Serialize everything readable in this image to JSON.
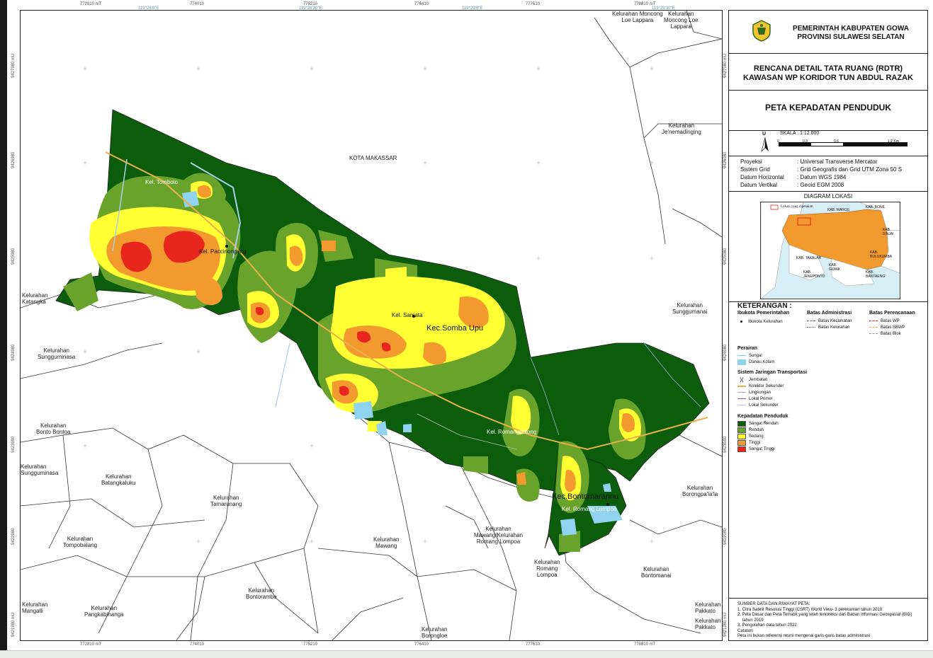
{
  "map": {
    "top_ticks": [
      "772810 mT",
      "774010",
      "775210",
      "776410",
      "777610",
      "778810 mT"
    ],
    "top_deg_ticks": [
      "119°28'0\"E",
      "119°28'30\"E",
      "119°29'0\"E",
      "119°29'30\"E"
    ],
    "bottom_ticks": [
      "772810 mT",
      "774010",
      "775210",
      "776410",
      "777610",
      "778810 mT"
    ],
    "left_ticks": [
      "9427980 mU",
      "9426980",
      "9425980",
      "9424980",
      "9423980",
      "9422980",
      "9421980 mU"
    ],
    "right_ticks": [
      "9427980 mU",
      "9426980",
      "9425980",
      "9424980",
      "9423980",
      "9422980",
      "9421980 mU"
    ],
    "labels": {
      "kota_makassar": "KOTA MAKASSAR",
      "moncong_loe_1": "Kelurahan Moncong\nLoe Lappara",
      "moncong_loe_2": "Kelurahan\nMoncong Loe\nLappara",
      "jenemadinging": "Kelurahan\nJe'nemadinging",
      "katangka": "Kelurahan\nKatangka",
      "sungguminasa_1": "Kelurahan\nSungguminasa",
      "bonto_bontoa": "Kelurahan\nBonto Bontoa",
      "sungguminasa_2": "Kelurahan\nSungguminasa",
      "batangkaluku": "Kelurahan\nBatangkaluku",
      "tamarunang": "Kelurahan\nTamarunang",
      "tompobalang": "Kelurahan\nTompobalang",
      "mawang": "Kelurahan\nMawang",
      "mawang_romang": "Kelurahan\nMawang/Kelurahan\nRomang Lompoa",
      "romang_lompoa": "Kelurahan\nRomang\nLompoa",
      "bontomanai": "Kelurahan\nBontomanai",
      "bontoramba": "Kelurahan\nBontoramba",
      "mangalli": "Kelurahan\nMangalli",
      "pangkabinanga": "Kelurahan\nPangkabinanga",
      "borongloe": "Kelurahan\nBorongloe",
      "pakkato": "Kelurahan\nPakkato",
      "pakkato_2": "Kelurahan\nPakkato",
      "sunggumanai": "Kelurahan\nSunggumanai",
      "borongpalala": "Kelurahan\nBorongpa'la'la",
      "kel_tombolo": "Kel. Tombolo",
      "kel_paccinongang": "Kel. Paccinongang",
      "kel_samata": "Kel. Samata",
      "kec_somba_upu": "Kec.Somba Upu",
      "kel_romang_polong": "Kel. Romangpolong",
      "kec_bontomarannu": "Kec.Bontomarannu",
      "kel_romang_lompoa": "Kel. Romang Lompoa"
    }
  },
  "panel": {
    "gov_line1": "PEMERINTAH KABUPATEN GOWA",
    "gov_line2": "PROVINSI SULAWESI SELATAN",
    "plan_line1": "RENCANA DETAIL TATA RUANG (RDTR)",
    "plan_line2": "KAWASAN WP KORIDOR TUN ABDUL RAZAK",
    "map_title": "PETA KEPADATAN PENDUDUK",
    "north": "U",
    "scale_label": "SKALA :  1:12.000",
    "scale_ticks": [
      "0",
      "0,3",
      "0,6",
      "1,2 Km"
    ],
    "projection": [
      {
        "k": "Proyeksi",
        "v": ": Universal Transverse Mercator"
      },
      {
        "k": "Sistem Grid",
        "v": ": Grid Geografis dan Grid UTM Zona 50 S"
      },
      {
        "k": "Datum Horizontal",
        "v": ": Datum WGS 1984"
      },
      {
        "k": "Datum Vertikal",
        "v": ": Geoid EGM 2008"
      }
    ],
    "diagram_title": "DIAGRAM LOKASI",
    "diagram_legend": "Lokasi yang dipetakan",
    "diagram_labels": [
      "KAB. MAROS",
      "KAB. BONE",
      "KAB.\nSINJAI",
      "KAB. TAKALAR",
      "KAB.\nGOWA",
      "KAB.\nBULUKUMBA",
      "KAB.\nJENEPONTO",
      "KAB.\nBANTAENG"
    ],
    "legend_title": "KETERANGAN :",
    "ibukota_head": "Ibukota Pemerintahan",
    "ibukota_item": "Ibukota Kelurahan",
    "admin_head": "Batas Administrasi",
    "admin_items": [
      "Batas Kecamatan",
      "Batas Kelurahan"
    ],
    "perencanaan_head": "Batas Perencanaan",
    "perencanaan_items": [
      "Batas WP",
      "Batas SBWP",
      "Batas Blok"
    ],
    "perairan_head": "Perairan",
    "perairan_items": [
      "Sungai",
      "Danau,Kolam"
    ],
    "transport_head": "Sistem Jaringan Transportasi",
    "transport_items": [
      "Jembatan",
      "Kolektor Sekunder",
      "Lingkungan",
      "Lokal Primer",
      "Lokal Sekunder"
    ],
    "density_head": "Kepadatan Penduduk",
    "density_items": [
      {
        "label": "Sangat Rendah",
        "color": "#0b5d0b"
      },
      {
        "label": "Rendah",
        "color": "#6aa32c"
      },
      {
        "label": "Sedang",
        "color": "#ffff33"
      },
      {
        "label": "Tinggi",
        "color": "#f39a2e"
      },
      {
        "label": "Sangat Tinggi",
        "color": "#e8261e"
      }
    ],
    "source_head": "SUMBER DATA DAN RIWAYAT PETA:",
    "source_items": [
      "1. Citra Satelit Resolusi Tinggi (CSRT) World View- 3 perekaman tahun 2019",
      "2. Peta Dasar dan Peta Tematik yang telah terkoreksi dari Badan Informasi Geospasial (BIG)",
      "    tahun 2019",
      "3. Pengolahan data tahun 2022",
      "Catatan:",
      "Peta ini bukan referensi resmi mengenai garis-garis batas administrasi"
    ]
  }
}
